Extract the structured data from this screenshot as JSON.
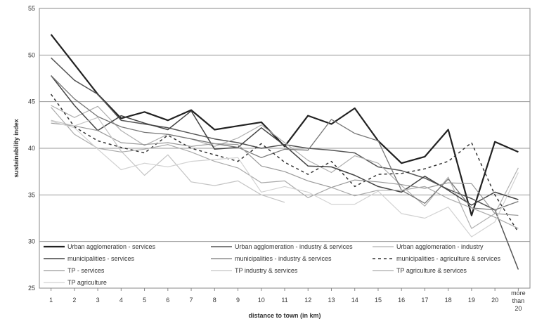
{
  "chart_data": {
    "type": "line",
    "title": "",
    "xlabel": "distance to town (in km)",
    "ylabel": "sustainability index",
    "ylim": [
      25,
      55
    ],
    "yticks": [
      25,
      30,
      35,
      40,
      45,
      50,
      55
    ],
    "categories": [
      "1",
      "2",
      "3",
      "4",
      "5",
      "6",
      "7",
      "8",
      "9",
      "10",
      "11",
      "12",
      "13",
      "14",
      "15",
      "16",
      "17",
      "18",
      "19",
      "20",
      "more than 20"
    ],
    "grid": "horizontal",
    "legend_position": "bottom-inside",
    "series": [
      {
        "name": "Urban agglomeration - services",
        "color": "#222222",
        "width": 2.2,
        "dash": "",
        "values": [
          52.2,
          49.0,
          45.8,
          43.2,
          43.9,
          43.0,
          44.1,
          42.0,
          42.4,
          42.8,
          40.2,
          43.5,
          42.6,
          44.3,
          40.8,
          38.4,
          39.1,
          42.0,
          32.8,
          40.7,
          39.6
        ]
      },
      {
        "name": "Urban agglomeration - industry & services",
        "color": "#555555",
        "width": 1.5,
        "dash": "",
        "values": [
          49.7,
          47.3,
          45.8,
          43.0,
          42.6,
          42.2,
          41.6,
          41.0,
          40.6,
          40.0,
          40.4,
          40.0,
          39.8,
          39.5,
          38.0,
          37.6,
          36.8,
          35.6,
          34.6,
          33.4,
          27.0
        ]
      },
      {
        "name": "Urban agglomeration - industry",
        "color": "#b0b0b0",
        "width": 1.2,
        "dash": "",
        "values": [
          44.6,
          43.3,
          44.5,
          41.9,
          40.3,
          41.5,
          41.0,
          40.2,
          41.1,
          42.5,
          40.6,
          38.7,
          37.4,
          39.2,
          38.4,
          36.0,
          33.8,
          36.9,
          31.4,
          33.0,
          37.9
        ]
      },
      {
        "name": "municipalities - services",
        "color": "#444444",
        "width": 1.5,
        "dash": "",
        "values": [
          47.8,
          44.6,
          41.9,
          43.5,
          42.7,
          42.0,
          44.0,
          39.9,
          40.1,
          42.2,
          40.3,
          38.1,
          38.0,
          37.1,
          35.9,
          35.3,
          37.0,
          35.5,
          33.9,
          35.3,
          34.5
        ]
      },
      {
        "name": "municipalities - industry & services",
        "color": "#777777",
        "width": 1.3,
        "dash": "",
        "values": [
          47.8,
          45.3,
          43.4,
          42.3,
          41.7,
          41.5,
          41.0,
          40.5,
          40.1,
          39.0,
          39.9,
          39.8,
          43.1,
          41.6,
          40.8,
          35.5,
          34.1,
          36.7,
          33.6,
          33.4,
          34.3
        ]
      },
      {
        "name": "municipalities - agriculture & services",
        "color": "#333333",
        "width": 1.5,
        "dash": "4,4",
        "values": [
          45.8,
          42.3,
          40.8,
          40.1,
          39.5,
          41.4,
          40.0,
          39.3,
          38.6,
          40.5,
          38.5,
          37.2,
          38.6,
          35.9,
          37.2,
          37.3,
          37.8,
          38.6,
          40.6,
          35.0,
          31.0
        ]
      },
      {
        "name": "TP - services",
        "color": "#999999",
        "width": 1.2,
        "dash": "",
        "values": [
          42.7,
          42.4,
          41.9,
          40.6,
          40.4,
          40.6,
          40.2,
          40.5,
          40.4,
          38.1,
          37.5,
          36.5,
          35.8,
          36.6,
          36.4,
          36.1,
          35.7,
          36.3,
          36.2,
          33.0,
          32.8
        ]
      },
      {
        "name": "TP industry & services",
        "color": "#c4c4c4",
        "width": 1.2,
        "dash": "",
        "values": [
          43.0,
          42.4,
          43.3,
          39.7,
          37.1,
          39.3,
          36.4,
          36.0,
          36.5,
          35.0,
          34.2,
          null,
          null,
          null,
          null,
          null,
          null,
          null,
          null,
          null,
          null
        ]
      },
      {
        "name": "TP agriculture & services",
        "color": "#aaaaaa",
        "width": 1.2,
        "dash": "",
        "values": [
          44.4,
          41.5,
          40.0,
          39.6,
          39.9,
          40.4,
          39.6,
          38.6,
          37.9,
          36.3,
          36.5,
          34.7,
          35.8,
          34.9,
          35.5,
          35.5,
          35.9,
          34.6,
          33.6,
          32.6,
          31.4
        ]
      },
      {
        "name": "TP agriculture",
        "color": "#d2d2d2",
        "width": 1.2,
        "dash": "",
        "values": [
          42.9,
          42.2,
          39.9,
          37.7,
          38.4,
          38.0,
          38.6,
          38.8,
          39.0,
          35.3,
          35.9,
          35.3,
          34.0,
          34.0,
          35.4,
          33.0,
          32.5,
          33.7,
          30.5,
          32.1,
          37.4
        ]
      }
    ]
  }
}
